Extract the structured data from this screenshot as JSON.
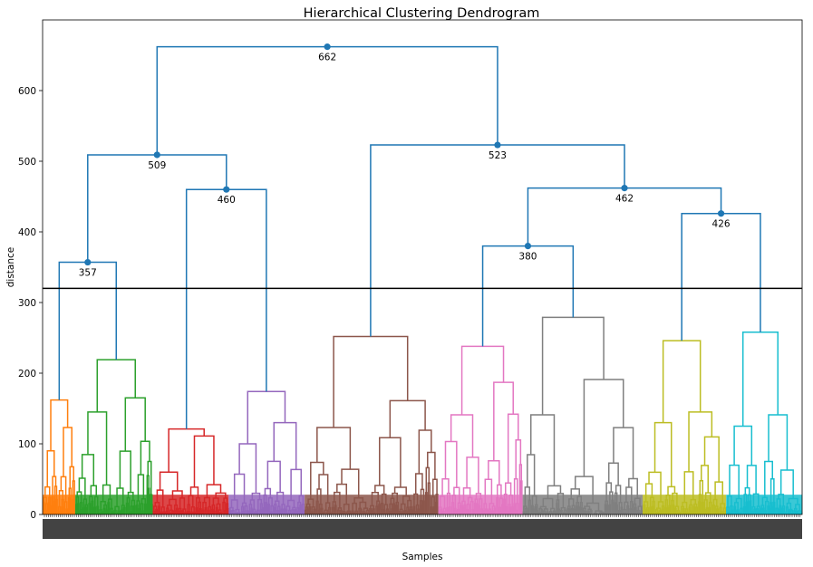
{
  "chart_data": {
    "type": "dendrogram",
    "title": "Hierarchical Clustering Dendrogram",
    "xlabel": "Samples",
    "ylabel": "distance",
    "ylim": [
      0,
      700
    ],
    "yticks": [
      0,
      100,
      200,
      300,
      400,
      500,
      600
    ],
    "cut_line": 320,
    "cut_line_color": "#000000",
    "top_link_color": "#1f77b4",
    "grid": false,
    "top_nodes": [
      {
        "id": "n662",
        "height": 662,
        "label": "662",
        "left": "n509",
        "right": "n523"
      },
      {
        "id": "n509",
        "height": 509,
        "label": "509",
        "left": "n357",
        "right": "n460"
      },
      {
        "id": "n523",
        "height": 523,
        "label": "523",
        "left": "c_brown",
        "right": "n462"
      },
      {
        "id": "n462",
        "height": 462,
        "label": "462",
        "left": "n380",
        "right": "n426"
      },
      {
        "id": "n357",
        "height": 357,
        "label": "357",
        "left": "c_orange",
        "right": "c_green"
      },
      {
        "id": "n460",
        "height": 460,
        "label": "460",
        "left": "c_red",
        "right": "c_purple"
      },
      {
        "id": "n380",
        "height": 380,
        "label": "380",
        "left": "c_pink",
        "right": "c_gray"
      },
      {
        "id": "n426",
        "height": 426,
        "label": "426",
        "left": "c_olive",
        "right": "c_cyan"
      }
    ],
    "clusters": [
      {
        "id": "c_orange",
        "color": "#ff7f0e",
        "x_range": [
          0.0,
          0.043
        ],
        "root_height": 162,
        "subs": [
          {
            "x": [
              0.0,
              0.02
            ],
            "h": 90
          },
          {
            "x": [
              0.02,
              0.043
            ],
            "h": 123
          }
        ]
      },
      {
        "id": "c_green",
        "color": "#2ca02c",
        "x_range": [
          0.043,
          0.145
        ],
        "root_height": 219,
        "subs": [
          {
            "x": [
              0.043,
              0.093
            ],
            "h": 145
          },
          {
            "x": [
              0.093,
              0.145
            ],
            "h": 165
          }
        ]
      },
      {
        "id": "c_red",
        "color": "#d62728",
        "x_range": [
          0.145,
          0.245
        ],
        "root_height": 121,
        "subs": [
          {
            "x": [
              0.145,
              0.19
            ],
            "h": 60
          },
          {
            "x": [
              0.19,
              0.245
            ],
            "h": 111
          }
        ]
      },
      {
        "id": "c_purple",
        "color": "#9467bd",
        "x_range": [
          0.245,
          0.345
        ],
        "root_height": 174,
        "subs": [
          {
            "x": [
              0.245,
              0.29
            ],
            "h": 100
          },
          {
            "x": [
              0.29,
              0.345
            ],
            "h": 130
          }
        ]
      },
      {
        "id": "c_brown",
        "color": "#8c564b",
        "x_range": [
          0.345,
          0.521
        ],
        "root_height": 252,
        "subs": [
          {
            "x": [
              0.345,
              0.43
            ],
            "h": 123
          },
          {
            "x": [
              0.43,
              0.521
            ],
            "h": 161
          }
        ]
      },
      {
        "id": "c_pink",
        "color": "#e377c2",
        "x_range": [
          0.521,
          0.632
        ],
        "root_height": 238,
        "subs": [
          {
            "x": [
              0.521,
              0.58
            ],
            "h": 141
          },
          {
            "x": [
              0.58,
              0.632
            ],
            "h": 187
          }
        ]
      },
      {
        "id": "c_gray",
        "color": "#7f7f7f",
        "x_range": [
          0.632,
          0.79
        ],
        "root_height": 279,
        "subs": [
          {
            "x": [
              0.632,
              0.69
            ],
            "h": 141
          },
          {
            "x": [
              0.69,
              0.79
            ],
            "h": 191
          }
        ]
      },
      {
        "id": "c_olive",
        "color": "#bcbd22",
        "x_range": [
          0.79,
          0.9
        ],
        "root_height": 246,
        "subs": [
          {
            "x": [
              0.79,
              0.84
            ],
            "h": 130
          },
          {
            "x": [
              0.84,
              0.9
            ],
            "h": 145
          }
        ]
      },
      {
        "id": "c_cyan",
        "color": "#17becf",
        "x_range": [
          0.9,
          1.0
        ],
        "root_height": 258,
        "subs": [
          {
            "x": [
              0.9,
              0.945
            ],
            "h": 125
          },
          {
            "x": [
              0.945,
              1.0
            ],
            "h": 141
          }
        ]
      }
    ]
  }
}
